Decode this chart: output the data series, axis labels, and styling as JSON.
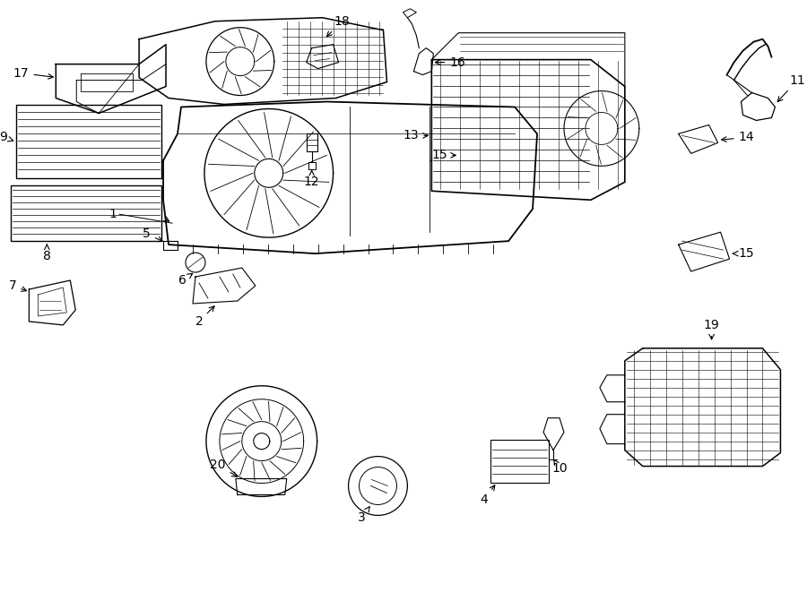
{
  "background_color": "#ffffff",
  "line_color": "#000000",
  "figure_width": 9.0,
  "figure_height": 6.61,
  "dpi": 100
}
